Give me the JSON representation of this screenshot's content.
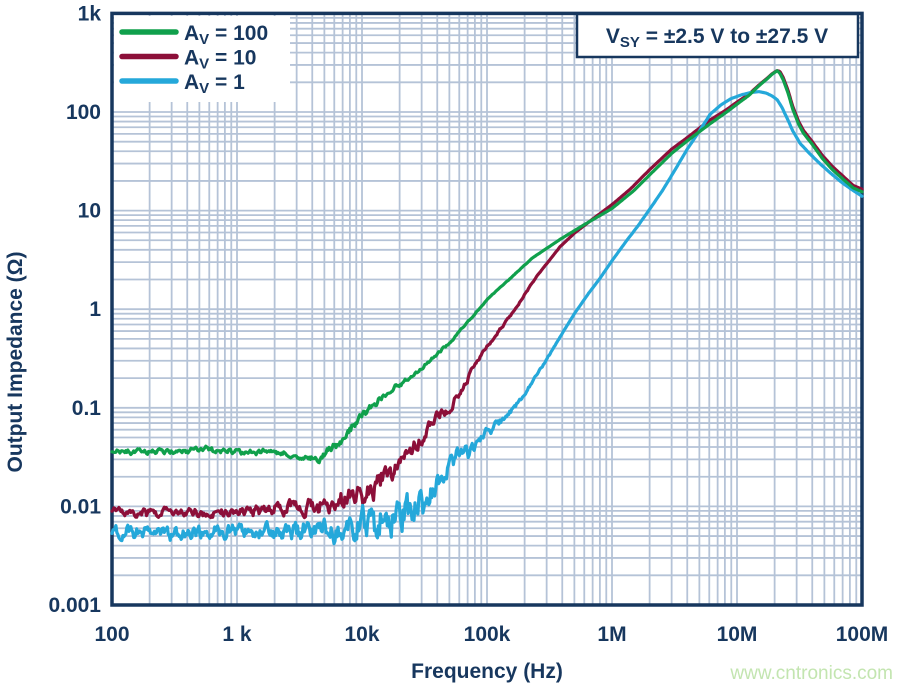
{
  "watermark": "www.cntronics.com",
  "annotation": {
    "prefix": "V",
    "sub": "SY",
    "rest": " = ±2.5 V to ±27.5 V"
  },
  "colors": {
    "text": "#17375e",
    "border": "#17375e",
    "grid": "#b5c3d7",
    "background": "#ffffff",
    "watermark": "#c3e5b0"
  },
  "chart_data": {
    "type": "line",
    "title": "",
    "xlabel": "Frequency (Hz)",
    "ylabel": "Output Impedance (Ω)",
    "x_scale": "log",
    "y_scale": "log",
    "xlim": [
      100,
      100000000
    ],
    "ylim": [
      0.001,
      1000
    ],
    "grid": true,
    "legend_position": "top-left",
    "x_ticks": [
      {
        "value": 100,
        "label": "100"
      },
      {
        "value": 1000,
        "label": "1 k"
      },
      {
        "value": 10000,
        "label": "10k"
      },
      {
        "value": 100000,
        "label": "100k"
      },
      {
        "value": 1000000,
        "label": "1M"
      },
      {
        "value": 10000000,
        "label": "10M"
      },
      {
        "value": 100000000,
        "label": "100M"
      }
    ],
    "y_ticks": [
      {
        "value": 1000,
        "label": "1k"
      },
      {
        "value": 100,
        "label": "100"
      },
      {
        "value": 10,
        "label": "10"
      },
      {
        "value": 1,
        "label": "1"
      },
      {
        "value": 0.1,
        "label": "0.1"
      },
      {
        "value": 0.01,
        "label": "0.01"
      },
      {
        "value": 0.001,
        "label": "0.001"
      }
    ],
    "series": [
      {
        "id": "av-100",
        "name": "AV = 100",
        "legend_prefix": "A",
        "legend_sub": "V",
        "legend_rest": " = 100",
        "color": "#10a04c",
        "z": 3,
        "noise_seed": 9,
        "points": [
          [
            100,
            0.036
          ],
          [
            160,
            0.0358
          ],
          [
            240,
            0.0362
          ],
          [
            330,
            0.0357
          ],
          [
            430,
            0.0363
          ],
          [
            550,
            0.0395
          ],
          [
            650,
            0.0368
          ],
          [
            800,
            0.036
          ],
          [
            1000,
            0.0362
          ],
          [
            1300,
            0.0355
          ],
          [
            1700,
            0.0358
          ],
          [
            2100,
            0.035
          ],
          [
            2600,
            0.0338
          ],
          [
            3200,
            0.0315
          ],
          [
            4000,
            0.0298
          ],
          [
            4700,
            0.0318
          ],
          [
            5500,
            0.038
          ],
          [
            6500,
            0.046
          ],
          [
            8000,
            0.058
          ],
          [
            10000,
            0.082
          ],
          [
            12000,
            0.1
          ],
          [
            14000,
            0.122
          ],
          [
            17000,
            0.148
          ],
          [
            20000,
            0.172
          ],
          [
            25000,
            0.21
          ],
          [
            30000,
            0.255
          ],
          [
            40000,
            0.35
          ],
          [
            50000,
            0.46
          ],
          [
            62000,
            0.62
          ],
          [
            73000,
            0.78
          ],
          [
            100000,
            1.25
          ],
          [
            150000,
            2.0
          ],
          [
            230000,
            3.3
          ],
          [
            384000,
            5.1
          ],
          [
            600000,
            7.2
          ],
          [
            1000000,
            10.5
          ],
          [
            1500000,
            16
          ],
          [
            2000000,
            23
          ],
          [
            3000000,
            38
          ],
          [
            4000000,
            51
          ],
          [
            6000000,
            75
          ],
          [
            8000000,
            97
          ],
          [
            10000000,
            120
          ],
          [
            12500000,
            148
          ],
          [
            15000000,
            185
          ],
          [
            17500000,
            218
          ],
          [
            19000000,
            240
          ],
          [
            20000000,
            252
          ],
          [
            21000000,
            262
          ],
          [
            22000000,
            248
          ],
          [
            23500000,
            210
          ],
          [
            25500000,
            158
          ],
          [
            28000000,
            106
          ],
          [
            31000000,
            76
          ],
          [
            34000000,
            61
          ],
          [
            40000000,
            47
          ],
          [
            48000000,
            34
          ],
          [
            58000000,
            26
          ],
          [
            70000000,
            21
          ],
          [
            85000000,
            17
          ],
          [
            100000000,
            15.5
          ]
        ],
        "noise_profile": [
          [
            100,
            0.026
          ],
          [
            3000,
            0.026
          ],
          [
            4500,
            0.04
          ],
          [
            7000,
            0.05
          ],
          [
            12000,
            0.04
          ],
          [
            20000,
            0.026
          ],
          [
            40000,
            0.014
          ],
          [
            80000,
            0.007
          ],
          [
            150000,
            0.003
          ],
          [
            400000,
            0
          ]
        ]
      },
      {
        "id": "av-10",
        "name": "AV = 10",
        "legend_prefix": "A",
        "legend_sub": "V",
        "legend_rest": " = 10",
        "color": "#8c0f39",
        "z": 1,
        "noise_seed": 17,
        "points": [
          [
            100,
            0.0088
          ],
          [
            200,
            0.0086
          ],
          [
            350,
            0.0089
          ],
          [
            550,
            0.0085
          ],
          [
            800,
            0.0087
          ],
          [
            1100,
            0.0089
          ],
          [
            1500,
            0.009
          ],
          [
            2200,
            0.0094
          ],
          [
            3200,
            0.01
          ],
          [
            4500,
            0.0104
          ],
          [
            6000,
            0.0108
          ],
          [
            8000,
            0.0115
          ],
          [
            10000,
            0.0128
          ],
          [
            12000,
            0.0148
          ],
          [
            14000,
            0.0185
          ],
          [
            17000,
            0.023
          ],
          [
            20000,
            0.028
          ],
          [
            24000,
            0.036
          ],
          [
            29000,
            0.046
          ],
          [
            35000,
            0.067
          ],
          [
            42000,
            0.081
          ],
          [
            50000,
            0.098
          ],
          [
            60000,
            0.135
          ],
          [
            73000,
            0.22
          ],
          [
            87000,
            0.32
          ],
          [
            100000,
            0.42
          ],
          [
            120000,
            0.57
          ],
          [
            145000,
            0.78
          ],
          [
            175000,
            1.08
          ],
          [
            210000,
            1.55
          ],
          [
            260000,
            2.3
          ],
          [
            320000,
            3.2
          ],
          [
            384000,
            4.3
          ],
          [
            500000,
            5.9
          ],
          [
            700000,
            8.2
          ],
          [
            1000000,
            11.5
          ],
          [
            1400000,
            16.5
          ],
          [
            2000000,
            26
          ],
          [
            3000000,
            42
          ],
          [
            4000000,
            55
          ],
          [
            6000000,
            82
          ],
          [
            8000000,
            103
          ],
          [
            10000000,
            126
          ],
          [
            12500000,
            152
          ],
          [
            15000000,
            188
          ],
          [
            17500000,
            221
          ],
          [
            19000000,
            243
          ],
          [
            20000000,
            254
          ],
          [
            21000000,
            263
          ],
          [
            22000000,
            258
          ],
          [
            23500000,
            222
          ],
          [
            25500000,
            168
          ],
          [
            28000000,
            113
          ],
          [
            31000000,
            81
          ],
          [
            34000000,
            65
          ],
          [
            40000000,
            50
          ],
          [
            48000000,
            36.5
          ],
          [
            58000000,
            28
          ],
          [
            70000000,
            22.5
          ],
          [
            85000000,
            18
          ],
          [
            100000000,
            16.5
          ]
        ],
        "noise_profile": [
          [
            100,
            0.042
          ],
          [
            1200,
            0.048
          ],
          [
            2500,
            0.08
          ],
          [
            5000,
            0.1
          ],
          [
            9000,
            0.11
          ],
          [
            15000,
            0.11
          ],
          [
            25000,
            0.09
          ],
          [
            45000,
            0.055
          ],
          [
            80000,
            0.025
          ],
          [
            150000,
            0.01
          ],
          [
            400000,
            0
          ]
        ]
      },
      {
        "id": "av-1",
        "name": "AV = 1",
        "legend_prefix": "A",
        "legend_sub": "V",
        "legend_rest": " = 1",
        "color": "#25a8da",
        "z": 2,
        "noise_seed": 5,
        "points": [
          [
            100,
            0.0055
          ],
          [
            180,
            0.0056
          ],
          [
            300,
            0.0053
          ],
          [
            500,
            0.0056
          ],
          [
            750,
            0.0054
          ],
          [
            1000,
            0.0056
          ],
          [
            1500,
            0.0057
          ],
          [
            2200,
            0.0055
          ],
          [
            3200,
            0.0057
          ],
          [
            4500,
            0.0058
          ],
          [
            6000,
            0.006
          ],
          [
            8000,
            0.0062
          ],
          [
            10000,
            0.0065
          ],
          [
            13000,
            0.007
          ],
          [
            16000,
            0.0074
          ],
          [
            20000,
            0.008
          ],
          [
            25000,
            0.009
          ],
          [
            30000,
            0.0105
          ],
          [
            36000,
            0.0135
          ],
          [
            43000,
            0.019
          ],
          [
            50000,
            0.027
          ],
          [
            57000,
            0.031
          ],
          [
            65000,
            0.0345
          ],
          [
            73000,
            0.037
          ],
          [
            82000,
            0.043
          ],
          [
            95000,
            0.052
          ],
          [
            110000,
            0.062
          ],
          [
            130000,
            0.075
          ],
          [
            155000,
            0.09
          ],
          [
            180000,
            0.115
          ],
          [
            220000,
            0.165
          ],
          [
            270000,
            0.25
          ],
          [
            330000,
            0.38
          ],
          [
            400000,
            0.57
          ],
          [
            500000,
            0.9
          ],
          [
            650000,
            1.45
          ],
          [
            800000,
            2.05
          ],
          [
            1000000,
            3.1
          ],
          [
            1300000,
            4.9
          ],
          [
            1600000,
            6.9
          ],
          [
            2000000,
            10.3
          ],
          [
            2560000,
            16.3
          ],
          [
            3200000,
            26
          ],
          [
            4000000,
            42
          ],
          [
            5000000,
            64
          ],
          [
            6100000,
            95
          ],
          [
            7500000,
            119
          ],
          [
            9000000,
            137
          ],
          [
            11000000,
            150
          ],
          [
            13000000,
            158
          ],
          [
            15000000,
            161
          ],
          [
            17000000,
            156
          ],
          [
            19000000,
            146
          ],
          [
            21000000,
            133
          ],
          [
            23000000,
            110
          ],
          [
            25000000,
            88
          ],
          [
            28000000,
            64
          ],
          [
            32000000,
            48
          ],
          [
            38000000,
            38
          ],
          [
            46000000,
            30
          ],
          [
            56000000,
            24
          ],
          [
            70000000,
            19
          ],
          [
            85000000,
            16
          ],
          [
            100000000,
            14
          ]
        ],
        "noise_profile": [
          [
            100,
            0.065
          ],
          [
            1500,
            0.075
          ],
          [
            4000,
            0.1
          ],
          [
            8000,
            0.14
          ],
          [
            15000,
            0.18
          ],
          [
            30000,
            0.17
          ],
          [
            50000,
            0.1
          ],
          [
            80000,
            0.065
          ],
          [
            120000,
            0.04
          ],
          [
            200000,
            0.018
          ],
          [
            500000,
            0
          ]
        ]
      }
    ]
  }
}
